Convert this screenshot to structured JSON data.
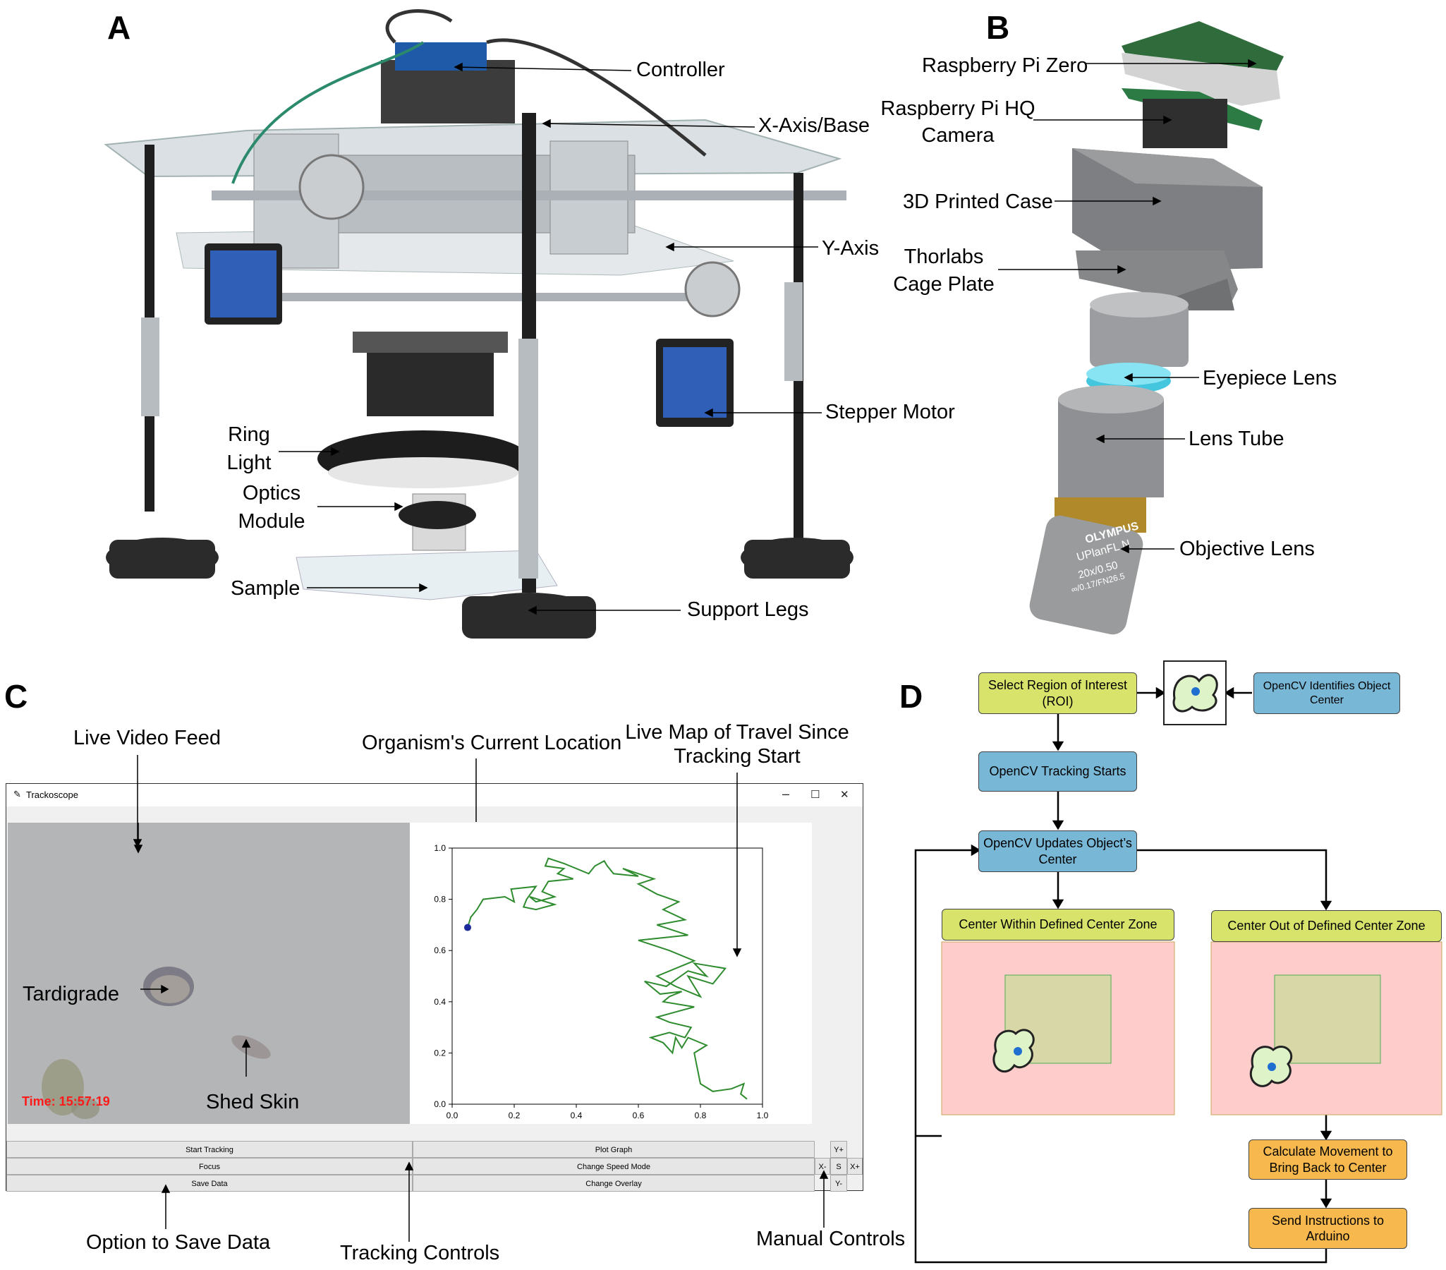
{
  "panels": {
    "a": "A",
    "b": "B",
    "c": "C",
    "d": "D"
  },
  "panel_a": {
    "labels": {
      "controller": "Controller",
      "x_axis_base": "X-Axis/Base",
      "y_axis": "Y-Axis",
      "stepper_motor": "Stepper Motor",
      "ring_light_1": "Ring",
      "ring_light_2": "Light",
      "optics_1": "Optics",
      "optics_2": "Module",
      "sample": "Sample",
      "support_legs": "Support Legs"
    }
  },
  "panel_b": {
    "labels": {
      "pi_zero": "Raspberry Pi Zero",
      "hq_camera_1": "Raspberry Pi HQ",
      "hq_camera_2": "Camera",
      "case": "3D Printed Case",
      "cage_1": "Thorlabs",
      "cage_2": "Cage Plate",
      "eyepiece": "Eyepiece Lens",
      "lens_tube": "Lens Tube",
      "objective": "Objective Lens"
    },
    "objective_text": {
      "brand": "OLYMPUS",
      "model": "UPlanFL N",
      "mag": "20x/0.50",
      "spec": "∞/0.17/FN26.5"
    }
  },
  "panel_c": {
    "callouts": {
      "live_video": "Live Video Feed",
      "current_location": "Organism's Current Location",
      "live_map_1": "Live Map of Travel Since",
      "live_map_2": "Tracking Start",
      "tardigrade": "Tardigrade",
      "shed_skin": "Shed Skin",
      "save_option": "Option to Save Data",
      "tracking_controls": "Tracking Controls",
      "manual_controls": "Manual Controls"
    },
    "app": {
      "title": "Trackoscope",
      "minimize": "–",
      "maximize": "☐",
      "close": "✕",
      "timestamp": "Time:  15:57:19",
      "buttons": {
        "start_tracking": "Start Tracking",
        "plot_graph": "Plot Graph",
        "focus": "Focus",
        "change_speed": "Change Speed Mode",
        "save_data": "Save Data",
        "change_overlay": "Change Overlay",
        "y_plus": "Y+",
        "x_minus": "X-",
        "s": "S",
        "x_plus": "X+",
        "y_minus": "Y-"
      }
    }
  },
  "chart_data": {
    "type": "line",
    "title": "",
    "xlabel": "",
    "ylabel": "",
    "xlim": [
      0.0,
      1.0
    ],
    "ylim": [
      0.0,
      1.0
    ],
    "xticks": [
      "0.0",
      "0.2",
      "0.4",
      "0.6",
      "0.8",
      "1.0"
    ],
    "yticks": [
      "0.0",
      "0.2",
      "0.4",
      "0.6",
      "0.8",
      "1.0"
    ],
    "grid": false,
    "series": [
      {
        "color": "#2e8b2e",
        "x": [
          0.95,
          0.93,
          0.94,
          0.9,
          0.84,
          0.8,
          0.79,
          0.78,
          0.82,
          0.76,
          0.74,
          0.72,
          0.71,
          0.68,
          0.64,
          0.7,
          0.75,
          0.77,
          0.7,
          0.66,
          0.72,
          0.78,
          0.68,
          0.7,
          0.74,
          0.67,
          0.62,
          0.69,
          0.76,
          0.82,
          0.78,
          0.88,
          0.84,
          0.76,
          0.8,
          0.72,
          0.66,
          0.78,
          0.7,
          0.6,
          0.76,
          0.66,
          0.75,
          0.68,
          0.73,
          0.66,
          0.6,
          0.65,
          0.55,
          0.6,
          0.52,
          0.5,
          0.49,
          0.46,
          0.44,
          0.4,
          0.36,
          0.31,
          0.3,
          0.36,
          0.34,
          0.39,
          0.31,
          0.29,
          0.33,
          0.27,
          0.25,
          0.33,
          0.27,
          0.23,
          0.24,
          0.27,
          0.19,
          0.2,
          0.17,
          0.1,
          0.08,
          0.06,
          0.05
        ],
        "y": [
          0.02,
          0.04,
          0.08,
          0.06,
          0.05,
          0.08,
          0.14,
          0.2,
          0.23,
          0.26,
          0.22,
          0.26,
          0.2,
          0.24,
          0.26,
          0.28,
          0.26,
          0.3,
          0.32,
          0.34,
          0.36,
          0.38,
          0.4,
          0.42,
          0.44,
          0.43,
          0.48,
          0.46,
          0.52,
          0.5,
          0.55,
          0.53,
          0.47,
          0.5,
          0.42,
          0.46,
          0.5,
          0.56,
          0.6,
          0.64,
          0.66,
          0.7,
          0.72,
          0.76,
          0.79,
          0.82,
          0.86,
          0.88,
          0.92,
          0.89,
          0.9,
          0.93,
          0.95,
          0.93,
          0.9,
          0.92,
          0.94,
          0.96,
          0.93,
          0.92,
          0.9,
          0.88,
          0.87,
          0.83,
          0.81,
          0.79,
          0.81,
          0.78,
          0.76,
          0.77,
          0.8,
          0.85,
          0.84,
          0.79,
          0.81,
          0.8,
          0.76,
          0.73,
          0.69
        ]
      }
    ],
    "current_point": {
      "x": 0.05,
      "y": 0.69
    }
  },
  "panel_d": {
    "select_roi": "Select Region of Interest (ROI)",
    "identifies_center": "OpenCV Identifies Object Center",
    "tracking_starts": "OpenCV Tracking Starts",
    "updates_center": "OpenCV Updates Object’s Center",
    "within_zone": "Center Within Defined Center Zone",
    "out_zone": "Center Out of Defined Center Zone",
    "calculate": "Calculate Movement to Bring Back to Center",
    "send": "Send Instructions to Arduino",
    "colors": {
      "green": "#d7e36b",
      "blue": "#78b7d6",
      "orange": "#f7b84d",
      "zone": "#ffcccc",
      "center_zone": "#d8d7a8"
    }
  }
}
